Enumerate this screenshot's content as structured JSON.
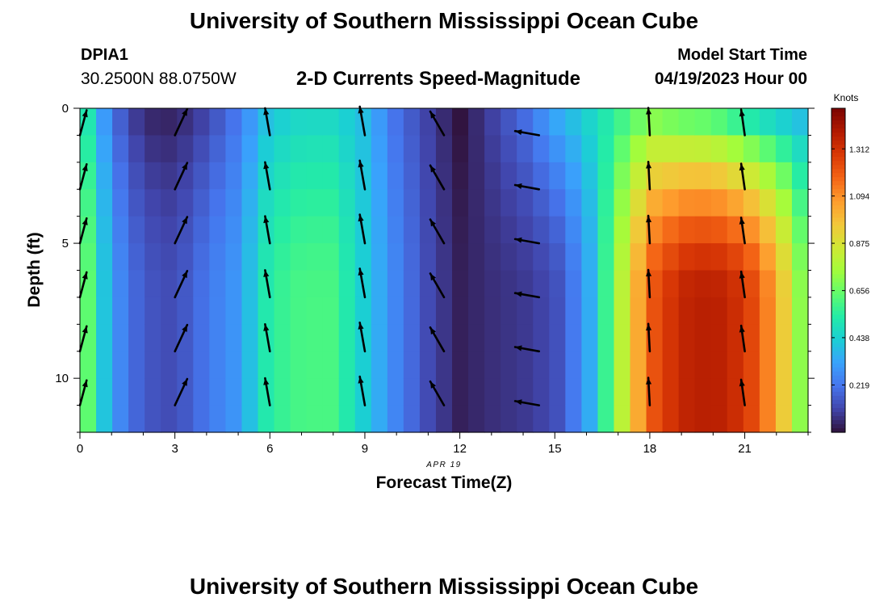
{
  "page": {
    "title": "University of Southern Mississippi Ocean Cube",
    "title_bottom": "University of Southern Mississippi Ocean Cube",
    "station_id": "DPIA1",
    "coordinates": "30.2500N  88.0750W",
    "subtitle": "2-D Currents Speed-Magnitude",
    "model_start_label": "Model Start Time",
    "model_start_value": "04/19/2023 Hour 00"
  },
  "colors": {
    "arrow": "#000000",
    "axis": "#000000",
    "ramp": [
      "#30123b",
      "#4145ab",
      "#4675ed",
      "#39a2fc",
      "#1bcfd4",
      "#24eca6",
      "#61fc6c",
      "#a4fc3b",
      "#d1e834",
      "#f3c63a",
      "#fe9b2d",
      "#f36315",
      "#d93806",
      "#b11901",
      "#7a0402"
    ]
  },
  "chart_data": {
    "type": "heatmap",
    "title": "2-D Currents Speed-Magnitude",
    "xlabel": "Forecast Time(Z)",
    "ylabel": "Depth (ft)",
    "date_label": "APR 19",
    "x_ticks": [
      0,
      3,
      6,
      9,
      12,
      15,
      18,
      21
    ],
    "y_ticks": [
      0,
      5,
      10
    ],
    "xlim": [
      0,
      23
    ],
    "ylim": [
      0,
      12
    ],
    "colorbar": {
      "unit": "Knots",
      "ticks": [
        0.219,
        0.438,
        0.656,
        0.875,
        1.094,
        1.312
      ],
      "range": [
        0,
        1.5
      ]
    },
    "hours": [
      0,
      1,
      2,
      3,
      4,
      5,
      6,
      7,
      8,
      9,
      10,
      11,
      12,
      13,
      14,
      15,
      16,
      17,
      18,
      19,
      20,
      21,
      22,
      23
    ],
    "depths_ft": [
      0,
      1,
      2,
      3,
      4,
      5,
      6,
      7,
      8,
      9,
      10,
      11
    ],
    "profile_speed_knots": [
      0.75,
      0.3,
      0.15,
      0.12,
      0.22,
      0.3,
      0.55,
      0.6,
      0.6,
      0.42,
      0.25,
      0.12,
      0.03,
      0.06,
      0.08,
      0.12,
      0.3,
      0.75,
      1.2,
      1.35,
      1.38,
      1.3,
      1.05,
      0.6
    ],
    "surface_speed_knots": [
      0.6,
      0.2,
      0.04,
      0.03,
      0.1,
      0.22,
      0.4,
      0.45,
      0.45,
      0.38,
      0.2,
      0.1,
      0.0,
      0.1,
      0.2,
      0.35,
      0.45,
      0.55,
      0.65,
      0.58,
      0.55,
      0.45,
      0.38,
      0.35
    ],
    "arrows": {
      "hours": [
        0,
        3,
        6,
        9,
        11.5,
        14.5,
        18,
        21
      ],
      "depths_ft": [
        1,
        3,
        5,
        7,
        9,
        11
      ],
      "direction_deg": [
        15,
        25,
        -10,
        -10,
        -30,
        -80,
        -3,
        -8
      ],
      "tip_length_px": [
        32,
        36,
        34,
        36,
        34,
        30,
        34,
        32
      ]
    }
  }
}
